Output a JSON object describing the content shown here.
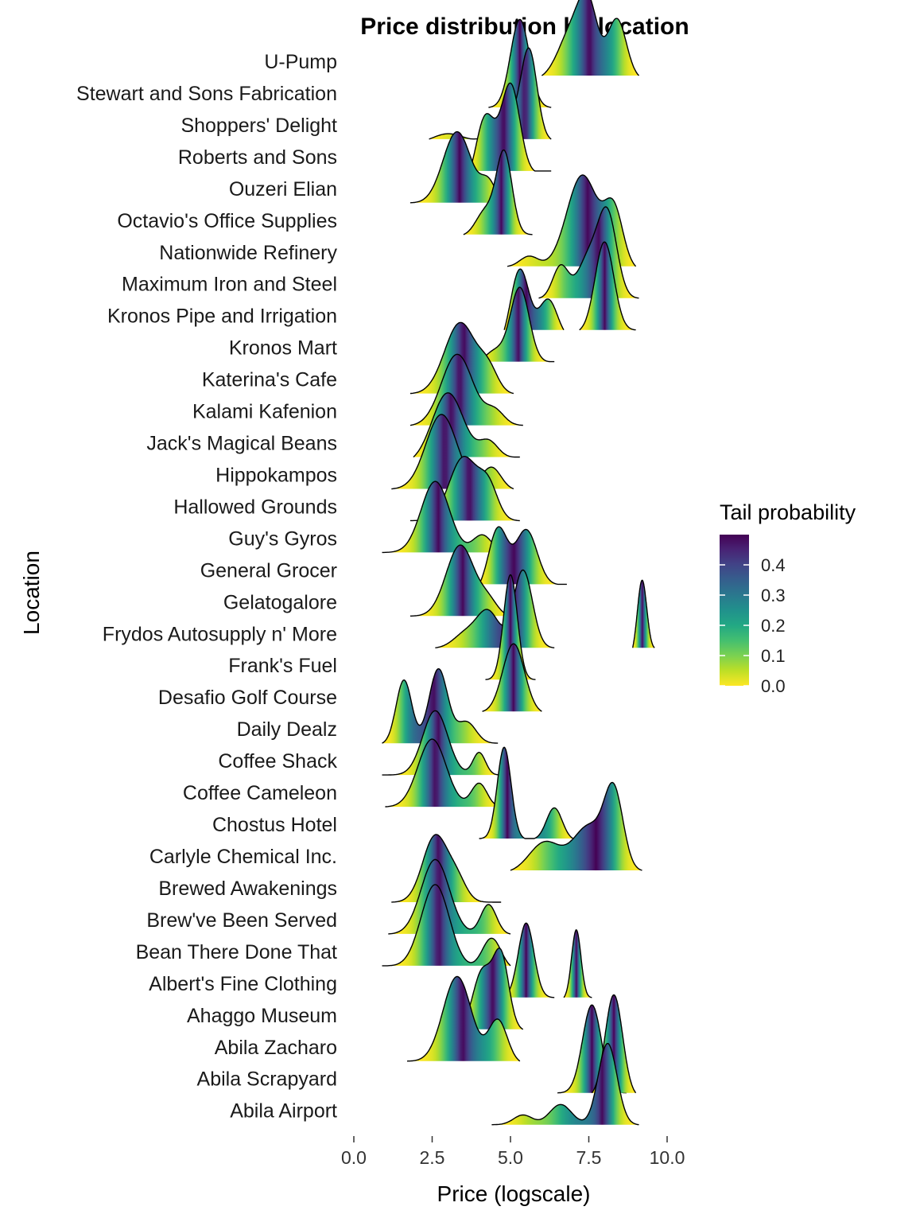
{
  "chart_data": {
    "type": "ridgeline",
    "title": "Price distribution by location",
    "xlabel": "Price (logscale)",
    "ylabel": "Location",
    "xlim": [
      0,
      10
    ],
    "x_ticks": [
      "0.0",
      "2.5",
      "5.0",
      "7.5",
      "10.0"
    ],
    "legend": {
      "title": "Tail probability",
      "placement": "right",
      "range": [
        0,
        0.5
      ],
      "ticks": [
        "0.0",
        "0.1",
        "0.2",
        "0.3",
        "0.4"
      ]
    },
    "series": [
      {
        "name": "U-Pump",
        "min": 6.0,
        "max": 9.1,
        "peaks": [
          [
            7.0,
            0.85,
            0.45
          ],
          [
            7.5,
            0.95,
            0.3
          ],
          [
            8.4,
            1.0,
            0.3
          ]
        ]
      },
      {
        "name": "Stewart and Sons Fabrication",
        "min": 4.3,
        "max": 6.3,
        "peaks": [
          [
            5.3,
            1.0,
            0.3
          ]
        ]
      },
      {
        "name": "Shoppers' Delight",
        "min": 2.4,
        "max": 6.3,
        "peaks": [
          [
            3.0,
            0.12,
            0.5
          ],
          [
            5.0,
            0.3,
            0.5
          ],
          [
            5.6,
            1.0,
            0.25
          ]
        ]
      },
      {
        "name": "Roberts and Sons",
        "min": 3.7,
        "max": 6.3,
        "peaks": [
          [
            4.2,
            0.5,
            0.3
          ],
          [
            5.0,
            0.7,
            0.3
          ]
        ]
      },
      {
        "name": "Ouzeri Elian",
        "min": 1.8,
        "max": 4.8,
        "peaks": [
          [
            3.3,
            1.0,
            0.45
          ],
          [
            4.3,
            0.3,
            0.25
          ]
        ]
      },
      {
        "name": "Octavio's Office Supplies",
        "min": 3.5,
        "max": 5.7,
        "peaks": [
          [
            4.8,
            1.0,
            0.25
          ],
          [
            4.2,
            0.3,
            0.3
          ]
        ]
      },
      {
        "name": "Nationwide Refinery",
        "min": 4.9,
        "max": 9.0,
        "peaks": [
          [
            5.6,
            0.12,
            0.3
          ],
          [
            7.3,
            1.0,
            0.5
          ],
          [
            8.3,
            0.6,
            0.3
          ]
        ]
      },
      {
        "name": "Maximum Iron and Steel",
        "min": 5.9,
        "max": 9.1,
        "peaks": [
          [
            6.6,
            0.4,
            0.25
          ],
          [
            7.5,
            0.5,
            0.35
          ],
          [
            8.1,
            1.0,
            0.3
          ]
        ]
      },
      {
        "name": "Kronos Pipe and Irrigation",
        "min": 4.8,
        "max": 6.7,
        "peaks": [
          [
            5.3,
            0.9,
            0.3
          ],
          [
            6.2,
            0.5,
            0.3
          ]
        ]
      },
      {
        "name": "Kronos Pipe and Irrigation (high)",
        "min": 7.2,
        "max": 9.0,
        "peaks": [
          [
            8.0,
            1.0,
            0.3
          ]
        ]
      },
      {
        "name": "Kronos Mart",
        "min": 4.0,
        "max": 6.4,
        "peaks": [
          [
            4.5,
            0.2,
            0.35
          ],
          [
            5.3,
            1.0,
            0.3
          ]
        ]
      },
      {
        "name": "Katerina's Cafe",
        "min": 1.8,
        "max": 5.1,
        "peaks": [
          [
            3.4,
            1.0,
            0.5
          ],
          [
            4.3,
            0.3,
            0.3
          ]
        ]
      },
      {
        "name": "Kalami Kafenion",
        "min": 1.8,
        "max": 5.4,
        "peaks": [
          [
            3.3,
            1.0,
            0.5
          ],
          [
            4.5,
            0.2,
            0.3
          ]
        ]
      },
      {
        "name": "Jack's Magical Beans",
        "min": 1.9,
        "max": 5.3,
        "peaks": [
          [
            3.0,
            1.0,
            0.5
          ],
          [
            4.3,
            0.25,
            0.3
          ]
        ]
      },
      {
        "name": "Hippokampos",
        "min": 1.2,
        "max": 5.1,
        "peaks": [
          [
            2.8,
            1.0,
            0.5
          ],
          [
            4.4,
            0.3,
            0.3
          ]
        ]
      },
      {
        "name": "Hallowed Grounds",
        "min": 1.8,
        "max": 5.3,
        "peaks": [
          [
            3.5,
            1.0,
            0.45
          ],
          [
            4.3,
            0.5,
            0.3
          ]
        ]
      },
      {
        "name": "Guy's Gyros",
        "min": 0.9,
        "max": 4.9,
        "peaks": [
          [
            2.6,
            1.0,
            0.45
          ],
          [
            4.1,
            0.25,
            0.3
          ]
        ]
      },
      {
        "name": "General Grocer",
        "min": 1.8,
        "max": 5.2,
        "peaks": [
          [
            3.4,
            1.0,
            0.45
          ],
          [
            4.4,
            0.3,
            0.3
          ]
        ]
      },
      {
        "name": "General Grocer (high)",
        "min": 4.0,
        "max": 6.8,
        "peaks": [
          [
            4.6,
            0.85,
            0.3
          ],
          [
            5.5,
            0.8,
            0.35
          ]
        ]
      },
      {
        "name": "Gelatogalore",
        "min": 1.8,
        "max": 5.0,
        "peaks": [
          [
            3.4,
            1.0,
            0.45
          ],
          [
            4.3,
            0.2,
            0.3
          ]
        ]
      },
      {
        "name": "Frydos Autosupply n' More",
        "min": 2.6,
        "max": 6.4,
        "peaks": [
          [
            3.6,
            0.2,
            0.4
          ],
          [
            4.3,
            0.45,
            0.35
          ],
          [
            5.4,
            1.0,
            0.3
          ]
        ]
      },
      {
        "name": "Frydos Autosupply n' More (tail)",
        "min": 8.9,
        "max": 9.6,
        "peaks": [
          [
            9.2,
            0.06,
            0.15
          ]
        ]
      },
      {
        "name": "Frank's Fuel",
        "min": 4.2,
        "max": 5.8,
        "peaks": [
          [
            5.0,
            1.0,
            0.22
          ]
        ]
      },
      {
        "name": "Desafio Golf Course",
        "min": 4.1,
        "max": 6.0,
        "peaks": [
          [
            5.1,
            0.35,
            0.35
          ]
        ]
      },
      {
        "name": "Daily Dealz",
        "min": 0.9,
        "max": 4.6,
        "peaks": [
          [
            1.6,
            0.6,
            0.25
          ],
          [
            2.7,
            0.7,
            0.3
          ],
          [
            3.6,
            0.2,
            0.3
          ]
        ]
      },
      {
        "name": "Coffee Shack",
        "min": 0.9,
        "max": 4.7,
        "peaks": [
          [
            2.6,
            1.0,
            0.4
          ],
          [
            4.0,
            0.35,
            0.2
          ]
        ]
      },
      {
        "name": "Coffee Cameleon",
        "min": 1.0,
        "max": 4.7,
        "peaks": [
          [
            2.5,
            1.0,
            0.45
          ],
          [
            4.0,
            0.35,
            0.25
          ]
        ]
      },
      {
        "name": "Chostus Hotel",
        "min": 4.0,
        "max": 7.0,
        "peaks": [
          [
            4.8,
            1.0,
            0.22
          ],
          [
            6.4,
            0.35,
            0.25
          ]
        ]
      },
      {
        "name": "Carlyle Chemical Inc.",
        "min": 5.0,
        "max": 9.2,
        "peaks": [
          [
            6.1,
            0.4,
            0.5
          ],
          [
            7.5,
            0.6,
            0.5
          ],
          [
            8.3,
            1.0,
            0.3
          ]
        ]
      },
      {
        "name": "Brewed Awakenings",
        "min": 1.2,
        "max": 4.7,
        "peaks": [
          [
            2.6,
            1.0,
            0.4
          ],
          [
            3.3,
            0.3,
            0.3
          ]
        ]
      },
      {
        "name": "Brew've Been Served",
        "min": 1.1,
        "max": 5.0,
        "peaks": [
          [
            2.6,
            1.0,
            0.45
          ],
          [
            4.3,
            0.4,
            0.25
          ]
        ]
      },
      {
        "name": "Bean There Done That",
        "min": 0.9,
        "max": 5.0,
        "peaks": [
          [
            2.6,
            0.8,
            0.45
          ],
          [
            4.4,
            0.3,
            0.3
          ]
        ]
      },
      {
        "name": "Albert's Fine Clothing",
        "min": 1.0,
        "max": 4.8,
        "peaks": [
          [
            2.7,
            1.0,
            0.4
          ],
          [
            4.2,
            0.3,
            0.35
          ]
        ]
      },
      {
        "name": "Albert's Fine Clothing (high)",
        "min": 4.6,
        "max": 6.4,
        "peaks": [
          [
            5.5,
            1.0,
            0.25
          ]
        ]
      },
      {
        "name": "Albert's Fine Clothing (tail)",
        "min": 6.7,
        "max": 7.6,
        "peaks": [
          [
            7.1,
            0.12,
            0.15
          ]
        ]
      },
      {
        "name": "Ahaggo Museum",
        "min": 3.2,
        "max": 5.4,
        "peaks": [
          [
            4.1,
            0.8,
            0.3
          ],
          [
            4.7,
            1.0,
            0.25
          ]
        ]
      },
      {
        "name": "Abila Zacharo",
        "min": 2.8,
        "max": 5.4,
        "peaks": [
          [
            3.7,
            0.4,
            0.35
          ],
          [
            4.5,
            0.35,
            0.3
          ]
        ]
      },
      {
        "name": "Abila Zacharo (main)",
        "min": 1.7,
        "max": 5.3,
        "peaks": [
          [
            3.3,
            0.7,
            0.45
          ],
          [
            4.6,
            0.35,
            0.3
          ]
        ]
      },
      {
        "name": "Abila Scrapyard",
        "min": 6.5,
        "max": 8.7,
        "peaks": [
          [
            7.6,
            1.0,
            0.3
          ]
        ]
      },
      {
        "name": "Abila Scrapyard (high)",
        "min": 7.6,
        "max": 9.0,
        "peaks": [
          [
            8.3,
            1.0,
            0.28
          ]
        ]
      },
      {
        "name": "Abila Airport",
        "min": 4.4,
        "max": 9.1,
        "peaks": [
          [
            5.4,
            0.12,
            0.3
          ],
          [
            6.6,
            0.25,
            0.35
          ],
          [
            8.1,
            1.0,
            0.3
          ]
        ]
      }
    ],
    "locations": [
      "U-Pump",
      "Stewart and Sons Fabrication",
      "Shoppers' Delight",
      "Roberts and Sons",
      "Ouzeri Elian",
      "Octavio's Office Supplies",
      "Nationwide Refinery",
      "Maximum Iron and Steel",
      "Kronos Pipe and Irrigation",
      "Kronos Mart",
      "Katerina's Cafe",
      "Kalami Kafenion",
      "Jack's Magical Beans",
      "Hippokampos",
      "Hallowed Grounds",
      "Guy's Gyros",
      "General Grocer",
      "Gelatogalore",
      "Frydos Autosupply n' More",
      "Frank's Fuel",
      "Desafio Golf Course",
      "Daily Dealz",
      "Coffee Shack",
      "Coffee Cameleon",
      "Chostus Hotel",
      "Carlyle Chemical Inc.",
      "Brewed Awakenings",
      "Brew've Been Served",
      "Bean There Done That",
      "Albert's Fine Clothing",
      "Ahaggo Museum",
      "Abila Zacharo",
      "Abila Scrapyard",
      "Abila Airport"
    ],
    "ridges": [
      {
        "row": 0,
        "series": "U-Pump",
        "height": 1.25
      },
      {
        "row": 1,
        "series": "Stewart and Sons Fabrication",
        "height": 1.3
      },
      {
        "row": 1,
        "series": "Shoppers' Delight",
        "height": 0.0
      },
      {
        "row": 2,
        "series": "Shoppers' Delight",
        "height": 1.35
      },
      {
        "row": 3,
        "series": "Roberts and Sons",
        "height": 1.3
      },
      {
        "row": 4,
        "series": "Ouzeri Elian",
        "height": 1.05
      },
      {
        "row": 5,
        "series": "Octavio's Office Supplies",
        "height": 1.25
      },
      {
        "row": 6,
        "series": "Nationwide Refinery",
        "height": 1.35
      },
      {
        "row": 7,
        "series": "Maximum Iron and Steel",
        "height": 1.35
      },
      {
        "row": 8,
        "series": "Kronos Pipe and Irrigation",
        "height": 0.9
      },
      {
        "row": 8,
        "series": "Kronos Pipe and Irrigation (high)",
        "height": 1.3
      },
      {
        "row": 9,
        "series": "Kronos Mart",
        "height": 1.1
      },
      {
        "row": 10,
        "series": "Katerina's Cafe",
        "height": 1.05
      },
      {
        "row": 11,
        "series": "Kalami Kafenion",
        "height": 1.05
      },
      {
        "row": 12,
        "series": "Jack's Magical Beans",
        "height": 0.95
      },
      {
        "row": 13,
        "series": "Hippokampos",
        "height": 1.1
      },
      {
        "row": 14,
        "series": "Hallowed Grounds",
        "height": 0.95
      },
      {
        "row": 15,
        "series": "Guy's Gyros",
        "height": 1.05
      },
      {
        "row": 16,
        "series": "General Grocer (high)",
        "height": 0.85
      },
      {
        "row": 16,
        "series": "General Grocer",
        "height": 0.0
      },
      {
        "row": 17,
        "series": "Gelatogalore",
        "height": 1.05
      },
      {
        "row": 18,
        "series": "Frydos Autosupply n' More",
        "height": 1.15
      },
      {
        "row": 18,
        "series": "Frydos Autosupply n' More (tail)",
        "height": 1.0
      },
      {
        "row": 19,
        "series": "Frank's Fuel",
        "height": 1.55
      },
      {
        "row": 20,
        "series": "Desafio Golf Course",
        "height": 1.0
      },
      {
        "row": 21,
        "series": "Daily Dealz",
        "height": 1.1
      },
      {
        "row": 22,
        "series": "Coffee Shack",
        "height": 0.95
      },
      {
        "row": 23,
        "series": "Coffee Cameleon",
        "height": 1.0
      },
      {
        "row": 24,
        "series": "Chostus Hotel",
        "height": 1.35
      },
      {
        "row": 25,
        "series": "Carlyle Chemical Inc.",
        "height": 1.3
      },
      {
        "row": 26,
        "series": "Brewed Awakenings",
        "height": 1.0
      },
      {
        "row": 27,
        "series": "Brew've Been Served",
        "height": 1.1
      },
      {
        "row": 28,
        "series": "Bean There Done That",
        "height": 1.2
      },
      {
        "row": 29,
        "series": "Albert's Fine Clothing (high)",
        "height": 1.1
      },
      {
        "row": 29,
        "series": "Albert's Fine Clothing (tail)",
        "height": 1.0
      },
      {
        "row": 30,
        "series": "Ahaggo Museum",
        "height": 1.2
      },
      {
        "row": 31,
        "series": "Abila Zacharo (main)",
        "height": 1.25
      },
      {
        "row": 32,
        "series": "Abila Scrapyard",
        "height": 1.3
      },
      {
        "row": 32,
        "series": "Abila Scrapyard (high)",
        "height": 1.45
      },
      {
        "row": 33,
        "series": "Abila Airport",
        "height": 1.2
      }
    ]
  }
}
